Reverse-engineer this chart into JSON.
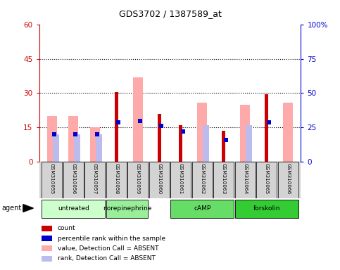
{
  "title": "GDS3702 / 1387589_at",
  "samples": [
    "GSM310055",
    "GSM310056",
    "GSM310057",
    "GSM310058",
    "GSM310059",
    "GSM310060",
    "GSM310061",
    "GSM310062",
    "GSM310063",
    "GSM310064",
    "GSM310065",
    "GSM310066"
  ],
  "count": [
    0,
    0,
    0,
    30.5,
    0,
    21,
    16,
    0,
    13.5,
    0,
    29.5,
    0
  ],
  "percentile_rank": [
    20,
    20,
    20,
    29,
    30,
    26,
    22,
    0,
    16,
    0,
    29,
    0
  ],
  "value_absent": [
    20,
    20,
    15,
    0,
    37,
    0,
    0,
    26,
    0,
    25,
    0,
    26
  ],
  "rank_absent": [
    20,
    20,
    20,
    0,
    0,
    0,
    0,
    27,
    0,
    27,
    0,
    0
  ],
  "group_defs": [
    [
      0,
      2,
      "untreated",
      "#ccffcc"
    ],
    [
      3,
      4,
      "norepinephrine",
      "#99ee99"
    ],
    [
      6,
      8,
      "cAMP",
      "#66dd66"
    ],
    [
      9,
      11,
      "forskolin",
      "#33cc33"
    ]
  ],
  "ylim_left": [
    0,
    60
  ],
  "ylim_right": [
    0,
    100
  ],
  "yticks_left": [
    0,
    15,
    30,
    45,
    60
  ],
  "ytick_labels_left": [
    "0",
    "15",
    "30",
    "45",
    "60"
  ],
  "ytick_labels_right": [
    "0",
    "25",
    "50",
    "75",
    "100%"
  ],
  "color_count": "#cc0000",
  "color_rank": "#0000cc",
  "color_value_absent": "#ffaaaa",
  "color_rank_absent": "#bbbbee",
  "background_color": "#ffffff"
}
